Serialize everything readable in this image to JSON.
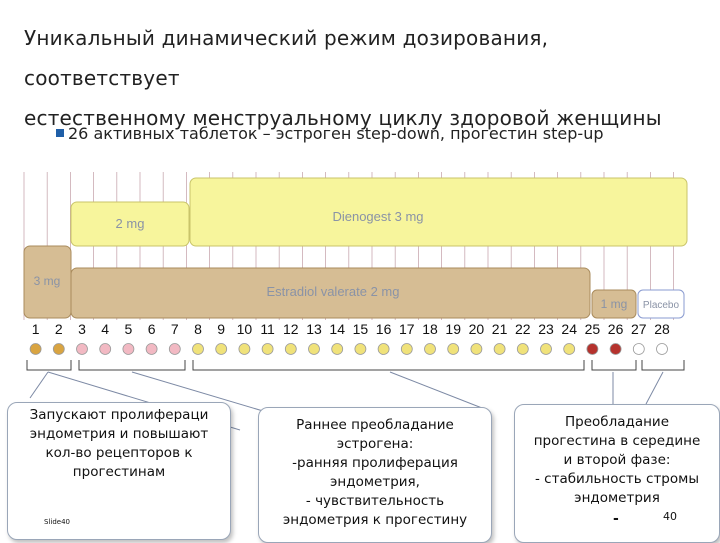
{
  "title_lines": [
    "Уникальный динамический режим дозирования,  соответствует",
    "естественному менструальному циклу здоровой женщины"
  ],
  "bullet": "26 активных таблеток – эстроген step-down, прогестин step-up",
  "bars": {
    "estradiol_3mg": "3 mg",
    "dienogest_2mg": "2 mg",
    "dienogest_3mg": "Dienogest 3 mg",
    "estradiol_2mg": "Estradiol valerate 2 mg",
    "estradiol_1mg": "1 mg",
    "placebo": "Placebo"
  },
  "days": [
    "1",
    "2",
    "3",
    "4",
    "5",
    "6",
    "7",
    "8",
    "9",
    "10",
    "11",
    "12",
    "13",
    "14",
    "15",
    "16",
    "17",
    "18",
    "19",
    "20",
    "21",
    "22",
    "23",
    "24",
    "25",
    "26",
    "27",
    "28"
  ],
  "pill_colors": [
    "#d9a441",
    "#d9a441",
    "#f2b9c3",
    "#f2b9c3",
    "#f2b9c3",
    "#f2b9c3",
    "#f2b9c3",
    "#f0e27a",
    "#f0e27a",
    "#f0e27a",
    "#f0e27a",
    "#f0e27a",
    "#f0e27a",
    "#f0e27a",
    "#f0e27a",
    "#f0e27a",
    "#f0e27a",
    "#f0e27a",
    "#f0e27a",
    "#f0e27a",
    "#f0e27a",
    "#f0e27a",
    "#f0e27a",
    "#f0e27a",
    "#b5322d",
    "#b5322d",
    "#ffffff",
    "#ffffff"
  ],
  "callouts": {
    "left": [
      "Запускают пролифераци",
      "эндометрия и повышают",
      "кол-во рецепторов к",
      "прогестинам"
    ],
    "middle": [
      "Раннее преобладание",
      "эстрогена:",
      "-ранняя пролиферация",
      "эндометрия,",
      "- чувствительность",
      "эндометрия к прогестину"
    ],
    "right": [
      "Преобладание",
      "прогестина в середине",
      "и второй фазе:",
      "- стабильность стромы",
      "эндометрия"
    ]
  },
  "slide_label": "Slide40",
  "slide_number": "40",
  "dash": "-",
  "colors": {
    "estradiol_fill": "#d6bd94",
    "estradiol_stroke": "#a98b5c",
    "dienogest_fill": "#f7f59c",
    "dienogest_stroke": "#c9c46a",
    "bar_text": "#8a93a6",
    "bullet": "#1f5fa8"
  }
}
